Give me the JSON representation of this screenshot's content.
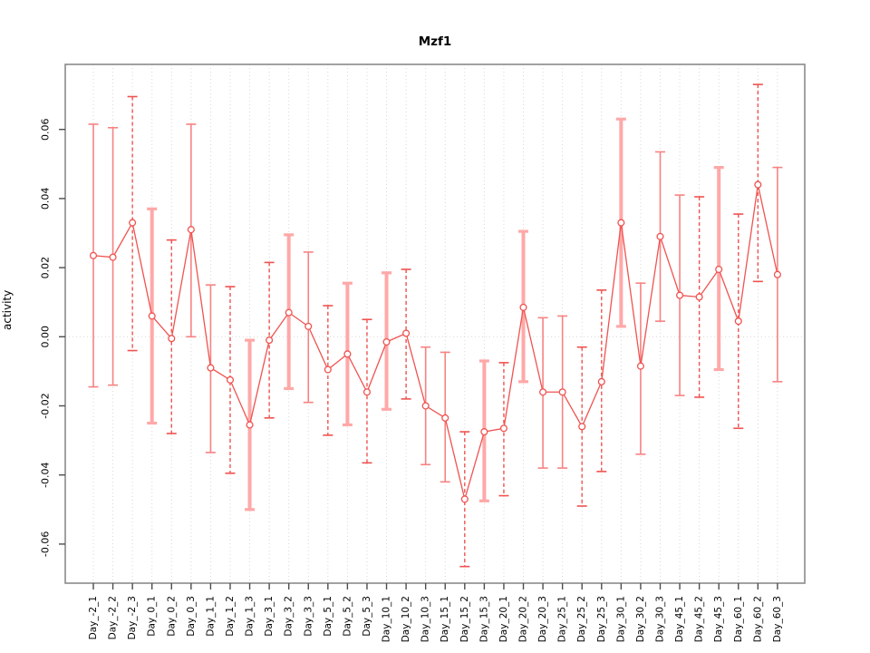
{
  "window": {
    "background": "#ffffff"
  },
  "chart_data": {
    "type": "scatter",
    "title": "Mzf1",
    "xlabel": "",
    "ylabel": "activity",
    "ylim": [
      -0.071,
      0.079
    ],
    "grid": "vertical dotted gridline per category, dotted horizontal line at y=0, no legend",
    "legend": "none",
    "point_marker": "open-circle",
    "line_color": "#EF5350",
    "thick_bar_color": "#FFA8A8",
    "grid_color": "#d8d8d8",
    "box_color": "#8a8a8a",
    "x_tick_rotation": 90,
    "yticks": [
      {
        "value": 0.06,
        "label": "0.06"
      },
      {
        "value": 0.04,
        "label": "0.04"
      },
      {
        "value": 0.02,
        "label": "0.02"
      },
      {
        "value": 0.0,
        "label": "0.00"
      },
      {
        "value": -0.02,
        "label": "-0.02"
      },
      {
        "value": -0.04,
        "label": "-0.04"
      },
      {
        "value": -0.06,
        "label": "-0.06"
      }
    ],
    "categories": [
      "Day_-2_1",
      "Day_-2_2",
      "Day_-2_3",
      "Day_0_1",
      "Day_0_2",
      "Day_0_3",
      "Day_1_1",
      "Day_1_2",
      "Day_1_3",
      "Day_3_1",
      "Day_3_2",
      "Day_3_3",
      "Day_5_1",
      "Day_5_2",
      "Day_5_3",
      "Day_10_1",
      "Day_10_2",
      "Day_10_3",
      "Day_15_1",
      "Day_15_2",
      "Day_15_3",
      "Day_20_1",
      "Day_20_2",
      "Day_20_3",
      "Day_25_1",
      "Day_25_2",
      "Day_25_3",
      "Day_30_1",
      "Day_30_2",
      "Day_30_3",
      "Day_45_1",
      "Day_45_2",
      "Day_45_3",
      "Day_60_1",
      "Day_60_2",
      "Day_60_3"
    ],
    "series": [
      {
        "name": "activity",
        "values": [
          0.0235,
          0.023,
          0.033,
          0.006,
          -0.0005,
          0.031,
          -0.009,
          -0.0125,
          -0.0255,
          -0.001,
          0.007,
          0.003,
          -0.0095,
          -0.005,
          -0.016,
          -0.0015,
          0.001,
          -0.02,
          -0.0235,
          -0.047,
          -0.0275,
          -0.0265,
          0.0085,
          -0.016,
          -0.016,
          -0.026,
          -0.013,
          0.033,
          -0.0085,
          0.029,
          0.012,
          0.0115,
          0.0195,
          0.0045,
          0.044,
          0.018
        ],
        "err_low": [
          -0.0145,
          -0.014,
          -0.004,
          -0.025,
          -0.028,
          0.0,
          -0.0335,
          -0.0395,
          -0.05,
          -0.0235,
          -0.015,
          -0.019,
          -0.0285,
          -0.0255,
          -0.0365,
          -0.021,
          -0.018,
          -0.037,
          -0.042,
          -0.0665,
          -0.0475,
          -0.046,
          -0.013,
          -0.038,
          -0.038,
          -0.049,
          -0.039,
          0.003,
          -0.034,
          0.0045,
          -0.017,
          -0.0175,
          -0.0095,
          -0.0265,
          0.016,
          -0.013
        ],
        "err_high": [
          0.0615,
          0.0605,
          0.0695,
          0.037,
          0.028,
          0.0615,
          0.015,
          0.0145,
          -0.001,
          0.0215,
          0.0295,
          0.0245,
          0.009,
          0.0155,
          0.005,
          0.0185,
          0.0195,
          -0.003,
          -0.0045,
          -0.0275,
          -0.007,
          -0.0075,
          0.0305,
          0.0055,
          0.006,
          -0.003,
          0.0135,
          0.063,
          0.0155,
          0.0535,
          0.041,
          0.0405,
          0.049,
          0.0355,
          0.073,
          0.049
        ],
        "bar_styles": [
          "solid",
          "solid",
          "dashed",
          "thick",
          "dashed",
          "solid",
          "solid",
          "dashed",
          "thick",
          "dashed",
          "thick",
          "solid",
          "dashed",
          "thick",
          "dashed",
          "thick",
          "dashed",
          "solid",
          "solid",
          "dashed",
          "thick",
          "dashed",
          "thick",
          "solid",
          "solid",
          "dashed",
          "dashed",
          "thick",
          "solid",
          "solid",
          "solid",
          "dashed",
          "thick",
          "dashed",
          "dashed",
          "solid"
        ]
      }
    ]
  }
}
